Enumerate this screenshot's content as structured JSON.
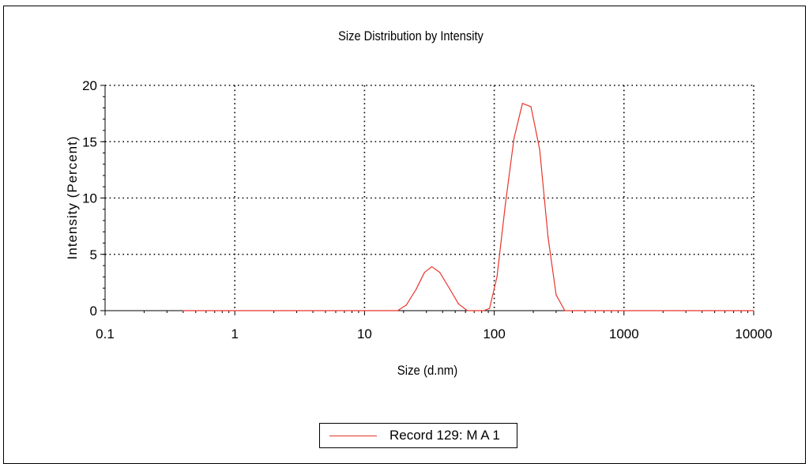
{
  "chart_data": {
    "type": "line",
    "title": "Size Distribution by Intensity",
    "xlabel": "Size (d.nm)",
    "ylabel": "Intensity (Percent)",
    "x_scale": "log",
    "xlim": [
      0.1,
      10000
    ],
    "ylim": [
      0,
      20
    ],
    "x_ticks": [
      "0.1",
      "1",
      "10",
      "100",
      "1000",
      "10000"
    ],
    "y_ticks": [
      "0",
      "5",
      "10",
      "15",
      "20"
    ],
    "grid": true,
    "legend_position": "bottom",
    "series": [
      {
        "name": "Record 129: M A 1",
        "color": "#e8352b",
        "x": [
          0.4,
          1,
          10,
          18,
          21,
          25,
          29,
          33,
          38,
          45,
          53,
          62,
          72,
          83,
          92,
          105,
          122,
          142,
          165,
          192,
          224,
          260,
          300,
          350,
          1000,
          10000
        ],
        "y": [
          0,
          0,
          0,
          0,
          0.5,
          1.9,
          3.4,
          3.9,
          3.4,
          2.0,
          0.6,
          0,
          0,
          0,
          0.2,
          3.0,
          9.5,
          15.3,
          18.4,
          18.1,
          14.3,
          6.5,
          1.4,
          0,
          0,
          0
        ]
      }
    ]
  }
}
